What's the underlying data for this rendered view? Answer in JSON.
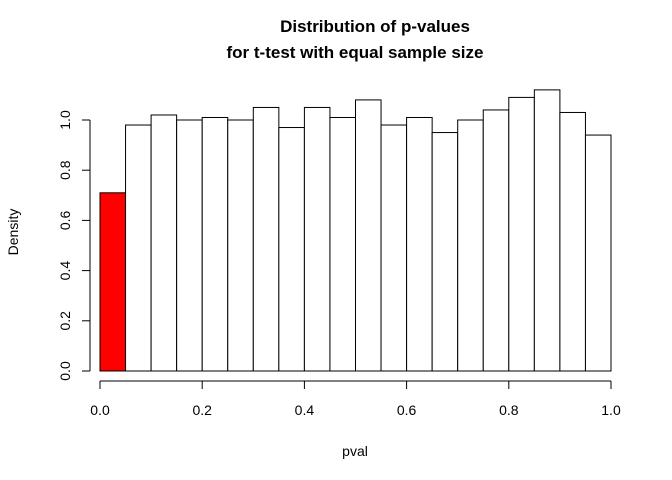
{
  "chart_data": {
    "type": "bar",
    "title": "Distribution of p-values",
    "subtitle": "for t-test with equal sample size",
    "xlabel": "pval",
    "ylabel": "Density",
    "xlim": [
      0,
      1
    ],
    "ylim": [
      0,
      1.12
    ],
    "xticks": [
      "0.0",
      "0.2",
      "0.4",
      "0.6",
      "0.8",
      "1.0"
    ],
    "yticks": [
      "0.0",
      "0.2",
      "0.4",
      "0.6",
      "0.8",
      "1.0"
    ],
    "bin_width": 0.05,
    "bins": [
      {
        "start": 0.0,
        "end": 0.05,
        "value": 0.71
      },
      {
        "start": 0.05,
        "end": 0.1,
        "value": 0.98
      },
      {
        "start": 0.1,
        "end": 0.15,
        "value": 1.02
      },
      {
        "start": 0.15,
        "end": 0.2,
        "value": 1.0
      },
      {
        "start": 0.2,
        "end": 0.25,
        "value": 1.01
      },
      {
        "start": 0.25,
        "end": 0.3,
        "value": 1.0
      },
      {
        "start": 0.3,
        "end": 0.35,
        "value": 1.05
      },
      {
        "start": 0.35,
        "end": 0.4,
        "value": 0.97
      },
      {
        "start": 0.4,
        "end": 0.45,
        "value": 1.05
      },
      {
        "start": 0.45,
        "end": 0.5,
        "value": 1.01
      },
      {
        "start": 0.5,
        "end": 0.55,
        "value": 1.08
      },
      {
        "start": 0.55,
        "end": 0.6,
        "value": 0.98
      },
      {
        "start": 0.6,
        "end": 0.65,
        "value": 1.01
      },
      {
        "start": 0.65,
        "end": 0.7,
        "value": 0.95
      },
      {
        "start": 0.7,
        "end": 0.75,
        "value": 1.0
      },
      {
        "start": 0.75,
        "end": 0.8,
        "value": 1.04
      },
      {
        "start": 0.8,
        "end": 0.85,
        "value": 1.09
      },
      {
        "start": 0.85,
        "end": 0.9,
        "value": 1.12
      },
      {
        "start": 0.9,
        "end": 0.95,
        "value": 1.03
      },
      {
        "start": 0.95,
        "end": 1.0,
        "value": 0.94
      }
    ],
    "highlight_color": "#ff0000",
    "bar_color": "#ffffff",
    "highlighted_bins": [
      0
    ],
    "grid": false
  }
}
